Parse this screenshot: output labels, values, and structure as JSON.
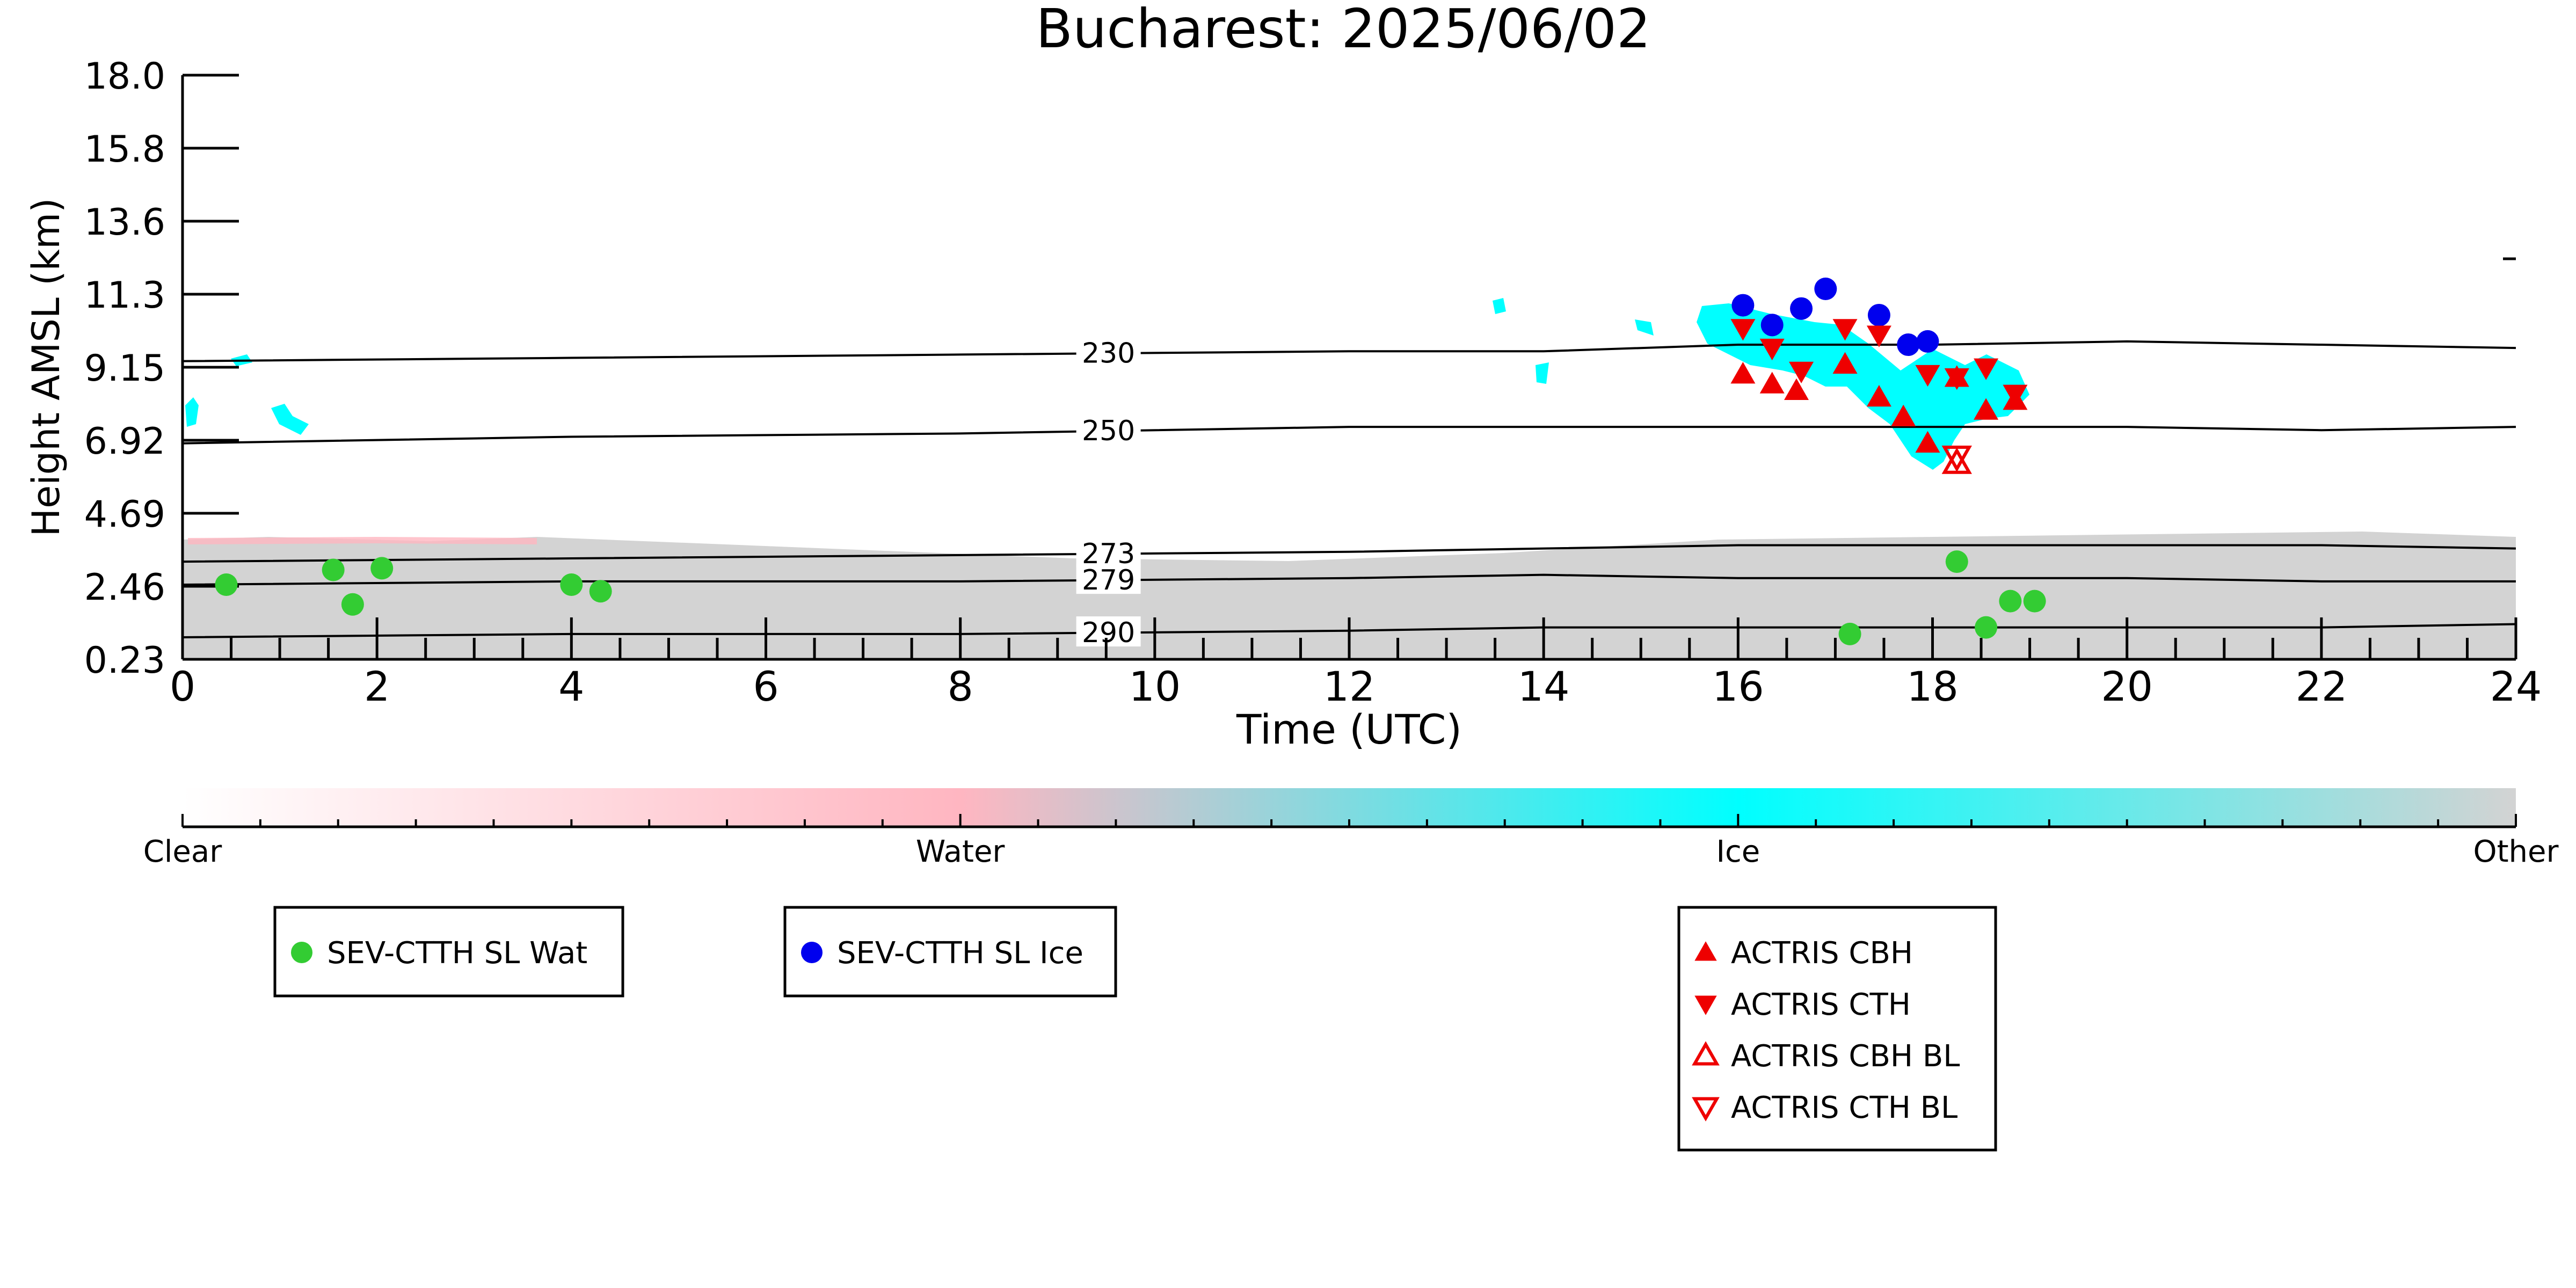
{
  "chart_data": {
    "type": "scatter",
    "title": "Bucharest: 2025/06/02",
    "xlabel": "Time (UTC)",
    "ylabel": "Height AMSL (km)",
    "xlim": [
      0,
      24
    ],
    "ylim": [
      0.23,
      18.0
    ],
    "x_ticks": [
      0,
      2,
      4,
      6,
      8,
      10,
      12,
      14,
      16,
      18,
      20,
      22,
      24
    ],
    "y_tick_labels": [
      "0.23",
      "2.46",
      "4.69",
      "6.92",
      "9.15",
      "11.3",
      "13.6",
      "15.8",
      "18.0"
    ],
    "grid": false,
    "colorbar": {
      "labels": [
        "Clear",
        "Water",
        "Ice",
        "Other"
      ],
      "colors": [
        "#ffffff",
        "#ffb6c1",
        "#00ffff",
        "#d3d3d3"
      ]
    },
    "contours": [
      {
        "label": "230",
        "x": [
          0,
          4,
          8,
          12,
          14,
          16,
          18,
          20,
          22,
          24
        ],
        "y": [
          9.3,
          9.4,
          9.5,
          9.6,
          9.6,
          9.8,
          9.8,
          9.9,
          9.8,
          9.7
        ]
      },
      {
        "label": "250",
        "x": [
          0,
          4,
          8,
          12,
          14,
          16,
          18,
          20,
          22,
          24
        ],
        "y": [
          6.8,
          7.0,
          7.1,
          7.3,
          7.3,
          7.3,
          7.3,
          7.3,
          7.2,
          7.3
        ]
      },
      {
        "label": "273",
        "x": [
          0,
          4,
          8,
          12,
          14,
          16,
          18,
          20,
          22,
          24
        ],
        "y": [
          3.2,
          3.3,
          3.4,
          3.5,
          3.6,
          3.7,
          3.7,
          3.7,
          3.7,
          3.6
        ]
      },
      {
        "label": "279",
        "x": [
          0,
          4,
          8,
          12,
          14,
          16,
          18,
          20,
          22,
          24
        ],
        "y": [
          2.5,
          2.6,
          2.6,
          2.7,
          2.8,
          2.7,
          2.7,
          2.7,
          2.6,
          2.6
        ]
      },
      {
        "label": "290",
        "x": [
          0,
          4,
          8,
          12,
          14,
          16,
          18,
          20,
          22,
          24
        ],
        "y": [
          0.9,
          1.0,
          1.0,
          1.1,
          1.2,
          1.2,
          1.2,
          1.2,
          1.2,
          1.3
        ]
      }
    ],
    "series": [
      {
        "name": "SEV-CTTH SL Wat",
        "color": "#33cc33",
        "marker": "circle",
        "x": [
          0.45,
          1.55,
          1.75,
          2.05,
          4.0,
          4.3,
          17.15,
          18.25,
          18.55,
          18.8,
          19.05
        ],
        "y": [
          2.5,
          2.95,
          1.9,
          3.0,
          2.5,
          2.3,
          1.0,
          3.2,
          1.2,
          2.0,
          2.0
        ]
      },
      {
        "name": "SEV-CTTH SL Ice",
        "color": "#0000ee",
        "marker": "circle",
        "x": [
          16.05,
          16.35,
          16.65,
          16.9,
          17.45,
          17.75,
          17.95
        ],
        "y": [
          11.0,
          10.4,
          10.9,
          11.5,
          10.7,
          9.8,
          9.9
        ]
      },
      {
        "name": "ACTRIS CBH",
        "color": "#ee0000",
        "marker": "triangle-up",
        "x": [
          16.05,
          16.35,
          16.6,
          17.1,
          17.45,
          17.7,
          17.95,
          18.25,
          18.55,
          18.85
        ],
        "y": [
          8.9,
          8.6,
          8.4,
          9.2,
          8.2,
          7.6,
          6.8,
          8.8,
          7.8,
          8.1
        ]
      },
      {
        "name": "ACTRIS CTH",
        "color": "#ee0000",
        "marker": "triangle-down",
        "x": [
          16.05,
          16.35,
          16.65,
          17.1,
          17.45,
          17.95,
          18.25,
          18.55,
          18.85
        ],
        "y": [
          10.3,
          9.7,
          9.0,
          10.3,
          10.1,
          8.9,
          8.8,
          9.1,
          8.3
        ]
      },
      {
        "name": "ACTRIS CBH BL",
        "color": "#ee0000",
        "marker": "triangle-up-open",
        "x": [
          18.25
        ],
        "y": [
          6.2
        ]
      },
      {
        "name": "ACTRIS CTH BL",
        "color": "#ee0000",
        "marker": "triangle-down-open",
        "x": [
          18.25
        ],
        "y": [
          6.4
        ]
      }
    ],
    "legends": [
      {
        "entries": [
          "SEV-CTTH SL Wat"
        ]
      },
      {
        "entries": [
          "SEV-CTTH SL Ice"
        ]
      },
      {
        "entries": [
          "ACTRIS CBH",
          "ACTRIS CTH",
          "ACTRIS CBH BL",
          "ACTRIS CTH BL"
        ]
      }
    ]
  }
}
